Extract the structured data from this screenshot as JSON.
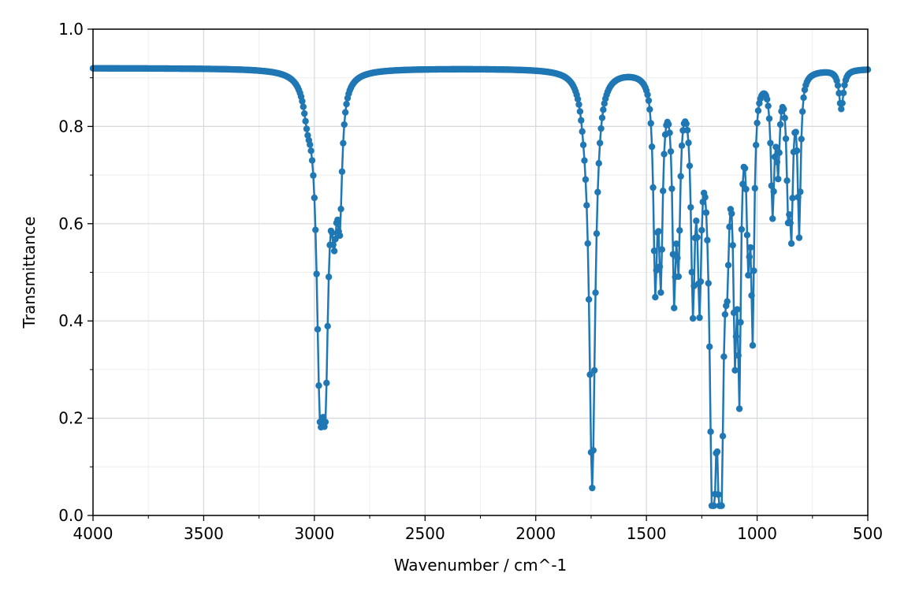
{
  "chart_data": {
    "type": "line",
    "title": "",
    "xlabel": "Wavenumber / cm^-1",
    "ylabel": "Transmittance",
    "xlim": [
      4000,
      500
    ],
    "ylim": [
      0.0,
      1.0
    ],
    "x_reversed": true,
    "xticks": [
      4000,
      3500,
      3000,
      2500,
      2000,
      1500,
      1000,
      500
    ],
    "xtick_labels": [
      "4000",
      "3500",
      "3000",
      "2500",
      "2000",
      "1500",
      "1000",
      "500"
    ],
    "yticks": [
      0.0,
      0.2,
      0.4,
      0.6,
      0.8,
      1.0
    ],
    "ytick_labels": [
      "0.0",
      "0.2",
      "0.4",
      "0.6",
      "0.8",
      "1.0"
    ],
    "grid": true,
    "minor_grid": true,
    "markers": true,
    "color": "#1f77b4",
    "baseline": 0.92,
    "bands": [
      {
        "center": 2975,
        "depth": 0.56,
        "width": 18
      },
      {
        "center": 2950,
        "depth": 0.5,
        "width": 16
      },
      {
        "center": 2910,
        "depth": 0.22,
        "width": 14
      },
      {
        "center": 2885,
        "depth": 0.24,
        "width": 12
      },
      {
        "center": 3030,
        "depth": 0.06,
        "width": 22
      },
      {
        "center": 1745,
        "depth": 0.85,
        "width": 16
      },
      {
        "center": 1780,
        "depth": 0.04,
        "width": 20
      },
      {
        "center": 1460,
        "depth": 0.4,
        "width": 10
      },
      {
        "center": 1435,
        "depth": 0.38,
        "width": 10
      },
      {
        "center": 1375,
        "depth": 0.4,
        "width": 9
      },
      {
        "center": 1355,
        "depth": 0.32,
        "width": 9
      },
      {
        "center": 1290,
        "depth": 0.42,
        "width": 10
      },
      {
        "center": 1260,
        "depth": 0.38,
        "width": 10
      },
      {
        "center": 1200,
        "depth": 0.88,
        "width": 16
      },
      {
        "center": 1165,
        "depth": 0.88,
        "width": 14
      },
      {
        "center": 1135,
        "depth": 0.22,
        "width": 10
      },
      {
        "center": 1100,
        "depth": 0.45,
        "width": 9
      },
      {
        "center": 1080,
        "depth": 0.55,
        "width": 8
      },
      {
        "center": 1040,
        "depth": 0.3,
        "width": 9
      },
      {
        "center": 1020,
        "depth": 0.48,
        "width": 8
      },
      {
        "center": 930,
        "depth": 0.27,
        "width": 9
      },
      {
        "center": 905,
        "depth": 0.17,
        "width": 8
      },
      {
        "center": 860,
        "depth": 0.23,
        "width": 8
      },
      {
        "center": 845,
        "depth": 0.28,
        "width": 8
      },
      {
        "center": 810,
        "depth": 0.32,
        "width": 8
      },
      {
        "center": 620,
        "depth": 0.08,
        "width": 12
      }
    ]
  }
}
